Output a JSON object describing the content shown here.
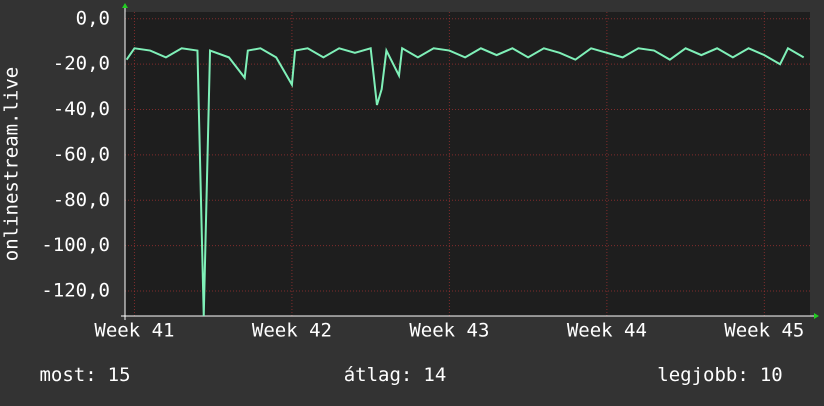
{
  "chart_data": {
    "type": "line",
    "ylabel": "onlinestream.live",
    "x": [
      40.95,
      41.0,
      41.1,
      41.2,
      41.3,
      41.4,
      41.44,
      41.48,
      41.6,
      41.7,
      41.72,
      41.8,
      41.9,
      42.0,
      42.02,
      42.1,
      42.2,
      42.3,
      42.4,
      42.5,
      42.54,
      42.57,
      42.6,
      42.68,
      42.7,
      42.8,
      42.9,
      43.0,
      43.1,
      43.2,
      43.3,
      43.4,
      43.5,
      43.6,
      43.7,
      43.8,
      43.9,
      44.0,
      44.1,
      44.2,
      44.3,
      44.4,
      44.5,
      44.6,
      44.7,
      44.8,
      44.9,
      45.0,
      45.1,
      45.15,
      45.25
    ],
    "series": [
      {
        "name": "onlinestream.live",
        "color": "#7ff0b8",
        "values": [
          -18,
          -13,
          -14,
          -17,
          -13,
          -14,
          -131,
          -14,
          -17,
          -26,
          -14,
          -13,
          -17,
          -29,
          -14,
          -13,
          -17,
          -13,
          -15,
          -13,
          -38,
          -31,
          -14,
          -25,
          -13,
          -17,
          -13,
          -14,
          -17,
          -13,
          -16,
          -13,
          -17,
          -13,
          -15,
          -18,
          -13,
          -15,
          -17,
          -13,
          -14,
          -18,
          -13,
          -16,
          -13,
          -17,
          -13,
          -16,
          -20,
          -13,
          -17
        ]
      }
    ],
    "xlim": [
      40.94,
      45.29
    ],
    "xticks": [
      {
        "value": 41,
        "label": "Week 41"
      },
      {
        "value": 42,
        "label": "Week 42"
      },
      {
        "value": 43,
        "label": "Week 43"
      },
      {
        "value": 44,
        "label": "Week 44"
      },
      {
        "value": 45,
        "label": "Week 45"
      }
    ],
    "ylim": [
      -131,
      3
    ],
    "yticks": [
      {
        "value": 0,
        "label": "0,0"
      },
      {
        "value": -20,
        "label": "-20,0"
      },
      {
        "value": -40,
        "label": "-40,0"
      },
      {
        "value": -60,
        "label": "-60,0"
      },
      {
        "value": -80,
        "label": "-80,0"
      },
      {
        "value": -100,
        "label": "-100,0"
      },
      {
        "value": -120,
        "label": "-120,0"
      }
    ],
    "grid": true,
    "stats": [
      {
        "label": "most:",
        "value": 15
      },
      {
        "label": "átlag:",
        "value": 14
      },
      {
        "label": "legjobb:",
        "value": 10
      }
    ]
  }
}
